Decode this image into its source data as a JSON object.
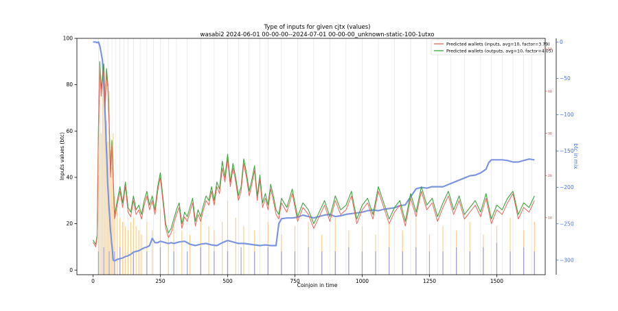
{
  "chart_data": {
    "type": "line",
    "title": "Type of inputs for given cjtx (values)",
    "subtitle": "wasabi2 2024-06-01 00-00-00--2024-07-01 00-00-00_unknown-static-100-1utxo",
    "xlabel": "Coinjoin in time",
    "ylabel": "Inputs values (btc)",
    "y2label": "btc in mix",
    "xlim": [
      -60,
      1680
    ],
    "ylim": [
      -2,
      100
    ],
    "y2lim": [
      -3.5,
      52.5
    ],
    "y3lim": [
      -320,
      5
    ],
    "xticks": [
      0,
      250,
      500,
      750,
      1000,
      1250,
      1500
    ],
    "yticks": [
      0,
      20,
      40,
      60,
      80,
      100
    ],
    "y2ticks": [
      10,
      20,
      30,
      40,
      50
    ],
    "y3ticks": [
      0,
      -50,
      -100,
      -150,
      -200,
      -250,
      -300
    ],
    "y3ticklabels": [
      "0",
      "−50",
      "−100",
      "−150",
      "−200",
      "−250",
      "−300"
    ],
    "legend_position": "top-right",
    "legend": [
      "Predicted wallets (inputs, avg=10, factor=3.79)",
      "Predicted wallets (outputs, avg=10, factor=4.05)"
    ],
    "colors": {
      "inputs": "#e8655a",
      "outputs": "#3aa33a",
      "btc_in_mix": "#7b94e0",
      "bars_orange": "#f5c26b",
      "bars_blue": "#8a8ee0",
      "y2_axis": "#d62728",
      "y3_axis": "#4a6fd8"
    },
    "series": [
      {
        "name": "Predicted wallets (inputs, avg=10, factor=3.79)",
        "axis": "y",
        "x": [
          0,
          10,
          15,
          20,
          25,
          30,
          35,
          40,
          45,
          50,
          55,
          60,
          65,
          70,
          75,
          80,
          90,
          100,
          110,
          120,
          130,
          140,
          150,
          160,
          170,
          180,
          190,
          200,
          210,
          220,
          230,
          240,
          250,
          260,
          270,
          280,
          290,
          300,
          310,
          320,
          330,
          340,
          350,
          360,
          370,
          380,
          390,
          400,
          410,
          420,
          430,
          440,
          450,
          460,
          470,
          480,
          490,
          500,
          510,
          520,
          530,
          540,
          550,
          560,
          570,
          580,
          590,
          600,
          610,
          620,
          630,
          640,
          650,
          660,
          670,
          680,
          690,
          700,
          720,
          740,
          760,
          780,
          800,
          820,
          840,
          860,
          880,
          900,
          920,
          940,
          960,
          980,
          1000,
          1020,
          1040,
          1060,
          1080,
          1100,
          1120,
          1140,
          1160,
          1180,
          1200,
          1220,
          1240,
          1260,
          1280,
          1300,
          1320,
          1340,
          1360,
          1380,
          1400,
          1420,
          1440,
          1460,
          1480,
          1500,
          1520,
          1540,
          1560,
          1580,
          1600,
          1620,
          1640
        ],
        "values": [
          12,
          10,
          14,
          60,
          88,
          75,
          82,
          86,
          70,
          85,
          78,
          62,
          40,
          54,
          38,
          22,
          28,
          34,
          27,
          36,
          25,
          23,
          30,
          24,
          26,
          22,
          28,
          32,
          26,
          30,
          24,
          34,
          40,
          29,
          18,
          14,
          16,
          20,
          24,
          27,
          18,
          23,
          21,
          25,
          29,
          19,
          24,
          21,
          26,
          30,
          28,
          34,
          28,
          36,
          33,
          44,
          38,
          48,
          36,
          44,
          38,
          30,
          34,
          46,
          40,
          32,
          37,
          43,
          30,
          39,
          27,
          31,
          26,
          35,
          30,
          24,
          22,
          29,
          25,
          33,
          21,
          27,
          24,
          18,
          23,
          28,
          21,
          30,
          24,
          26,
          32,
          20,
          26,
          29,
          22,
          34,
          27,
          20,
          25,
          28,
          19,
          31,
          23,
          34,
          26,
          29,
          21,
          27,
          32,
          24,
          30,
          22,
          25,
          28,
          23,
          31,
          20,
          26,
          24,
          29,
          33,
          22,
          27,
          25,
          30
        ]
      },
      {
        "name": "Predicted wallets (outputs, avg=10, factor=4.05)",
        "axis": "y",
        "x": [
          0,
          10,
          15,
          20,
          25,
          30,
          35,
          40,
          45,
          50,
          55,
          60,
          65,
          70,
          75,
          80,
          90,
          100,
          110,
          120,
          130,
          140,
          150,
          160,
          170,
          180,
          190,
          200,
          210,
          220,
          230,
          240,
          250,
          260,
          270,
          280,
          290,
          300,
          310,
          320,
          330,
          340,
          350,
          360,
          370,
          380,
          390,
          400,
          410,
          420,
          430,
          440,
          450,
          460,
          470,
          480,
          490,
          500,
          510,
          520,
          530,
          540,
          550,
          560,
          570,
          580,
          590,
          600,
          610,
          620,
          630,
          640,
          650,
          660,
          670,
          680,
          690,
          700,
          720,
          740,
          760,
          780,
          800,
          820,
          840,
          860,
          880,
          900,
          920,
          940,
          960,
          980,
          1000,
          1020,
          1040,
          1060,
          1080,
          1100,
          1120,
          1140,
          1160,
          1180,
          1200,
          1220,
          1240,
          1260,
          1280,
          1300,
          1320,
          1340,
          1360,
          1380,
          1400,
          1420,
          1440,
          1460,
          1480,
          1500,
          1520,
          1540,
          1560,
          1580,
          1600,
          1620,
          1640
        ],
        "values": [
          13,
          11,
          15,
          62,
          90,
          78,
          84,
          89,
          72,
          87,
          80,
          64,
          42,
          56,
          40,
          24,
          30,
          36,
          29,
          38,
          27,
          25,
          32,
          26,
          28,
          24,
          30,
          34,
          28,
          32,
          26,
          36,
          42,
          31,
          20,
          16,
          18,
          22,
          26,
          29,
          20,
          25,
          23,
          27,
          31,
          21,
          26,
          23,
          28,
          32,
          30,
          36,
          30,
          38,
          35,
          47,
          40,
          50,
          38,
          46,
          40,
          32,
          36,
          48,
          42,
          34,
          39,
          45,
          32,
          41,
          29,
          33,
          28,
          37,
          32,
          26,
          24,
          31,
          27,
          35,
          23,
          29,
          26,
          20,
          25,
          30,
          23,
          32,
          26,
          28,
          34,
          22,
          28,
          31,
          24,
          36,
          29,
          22,
          27,
          30,
          21,
          33,
          25,
          36,
          28,
          31,
          23,
          29,
          34,
          26,
          32,
          24,
          27,
          30,
          25,
          33,
          22,
          28,
          26,
          31,
          34,
          24,
          29,
          27,
          32
        ]
      },
      {
        "name": "btc in mix",
        "axis": "y3",
        "x": [
          0,
          10,
          15,
          20,
          25,
          30,
          35,
          40,
          45,
          50,
          55,
          60,
          65,
          70,
          75,
          80,
          90,
          100,
          110,
          120,
          130,
          140,
          150,
          160,
          170,
          180,
          190,
          200,
          210,
          220,
          230,
          240,
          250,
          260,
          270,
          280,
          290,
          300,
          320,
          340,
          360,
          380,
          400,
          420,
          440,
          460,
          480,
          500,
          520,
          540,
          560,
          580,
          600,
          620,
          640,
          660,
          680,
          690,
          700,
          720,
          740,
          760,
          780,
          800,
          820,
          840,
          860,
          880,
          900,
          920,
          940,
          960,
          980,
          1000,
          1020,
          1040,
          1060,
          1080,
          1100,
          1120,
          1140,
          1160,
          1180,
          1200,
          1220,
          1240,
          1260,
          1280,
          1300,
          1320,
          1340,
          1360,
          1380,
          1400,
          1420,
          1440,
          1460,
          1470,
          1480,
          1500,
          1520,
          1540,
          1560,
          1580,
          1600,
          1620,
          1640
        ],
        "values": [
          0,
          0,
          -1,
          0,
          -5,
          -15,
          -25,
          -60,
          -100,
          -150,
          -200,
          -230,
          -260,
          -280,
          -300,
          -301,
          -299,
          -298,
          -297,
          -295,
          -294,
          -292,
          -289,
          -288,
          -287,
          -285,
          -283,
          -282,
          -280,
          -270,
          -276,
          -276,
          -274,
          -275,
          -276,
          -277,
          -276,
          -277,
          -275,
          -274,
          -278,
          -280,
          -278,
          -277,
          -279,
          -280,
          -276,
          -273,
          -275,
          -277,
          -277,
          -278,
          -279,
          -280,
          -279,
          -280,
          -280,
          -250,
          -243,
          -242,
          -242,
          -241,
          -238,
          -240,
          -242,
          -240,
          -238,
          -237,
          -240,
          -239,
          -237,
          -236,
          -235,
          -234,
          -232,
          -231,
          -232,
          -230,
          -229,
          -228,
          -225,
          -224,
          -213,
          -202,
          -200,
          -201,
          -199,
          -199,
          -199,
          -196,
          -193,
          -190,
          -187,
          -184,
          -183,
          -180,
          -175,
          -166,
          -162,
          -162,
          -162,
          -163,
          -165,
          -165,
          -163,
          -161,
          -162
        ]
      }
    ],
    "bars_orange": {
      "axis": "y2",
      "x": [
        20,
        25,
        30,
        35,
        40,
        45,
        50,
        55,
        60,
        65,
        70,
        75,
        80,
        90,
        100,
        110,
        120,
        130,
        140,
        150,
        160,
        170,
        180,
        200,
        220,
        250,
        280,
        300,
        330,
        360,
        400,
        430,
        450,
        480,
        500,
        530,
        560,
        600,
        650,
        700,
        750,
        800,
        850,
        900,
        950,
        1000,
        1050,
        1100,
        1150,
        1200,
        1250,
        1300,
        1350,
        1400,
        1450,
        1500,
        1550,
        1600,
        1640
      ],
      "values": [
        20,
        38,
        30,
        42,
        45,
        36,
        33,
        28,
        40,
        26,
        22,
        30,
        15,
        12,
        10,
        9,
        8,
        7,
        9,
        10,
        8,
        7,
        6,
        9,
        7,
        12,
        6,
        8,
        7,
        6,
        11,
        8,
        7,
        9,
        14,
        10,
        8,
        7,
        9,
        6,
        8,
        9,
        6,
        10,
        7,
        8,
        6,
        9,
        7,
        10,
        6,
        8,
        7,
        9,
        6,
        8,
        10,
        7,
        9
      ]
    },
    "bars_blue": {
      "axis": "y2",
      "x": [
        20,
        40,
        60,
        80,
        100,
        150,
        200,
        250,
        300,
        350,
        400,
        450,
        500,
        550,
        600,
        650,
        700,
        750,
        800,
        850,
        900,
        950,
        1000,
        1050,
        1100,
        1150,
        1200,
        1250,
        1300,
        1350,
        1400,
        1450,
        1500,
        1550,
        1600,
        1640
      ],
      "values": [
        2,
        3,
        2,
        2,
        3,
        2,
        2,
        3,
        2,
        2,
        3,
        2,
        2,
        3,
        2,
        3,
        2,
        2,
        3,
        2,
        2,
        3,
        2,
        2,
        3,
        2,
        3,
        2,
        2,
        3,
        2,
        3,
        4,
        2,
        3,
        2
      ]
    },
    "vlines": [
      20,
      40,
      55,
      70,
      85,
      100,
      115,
      130,
      150,
      175,
      200,
      225,
      250,
      280,
      310,
      350,
      400,
      450,
      500,
      540,
      580,
      620,
      650,
      700,
      760,
      820,
      880,
      940,
      1000,
      1060,
      1120,
      1180,
      1240,
      1280,
      1330,
      1380,
      1440,
      1480,
      1520,
      1560,
      1600,
      1630
    ]
  }
}
